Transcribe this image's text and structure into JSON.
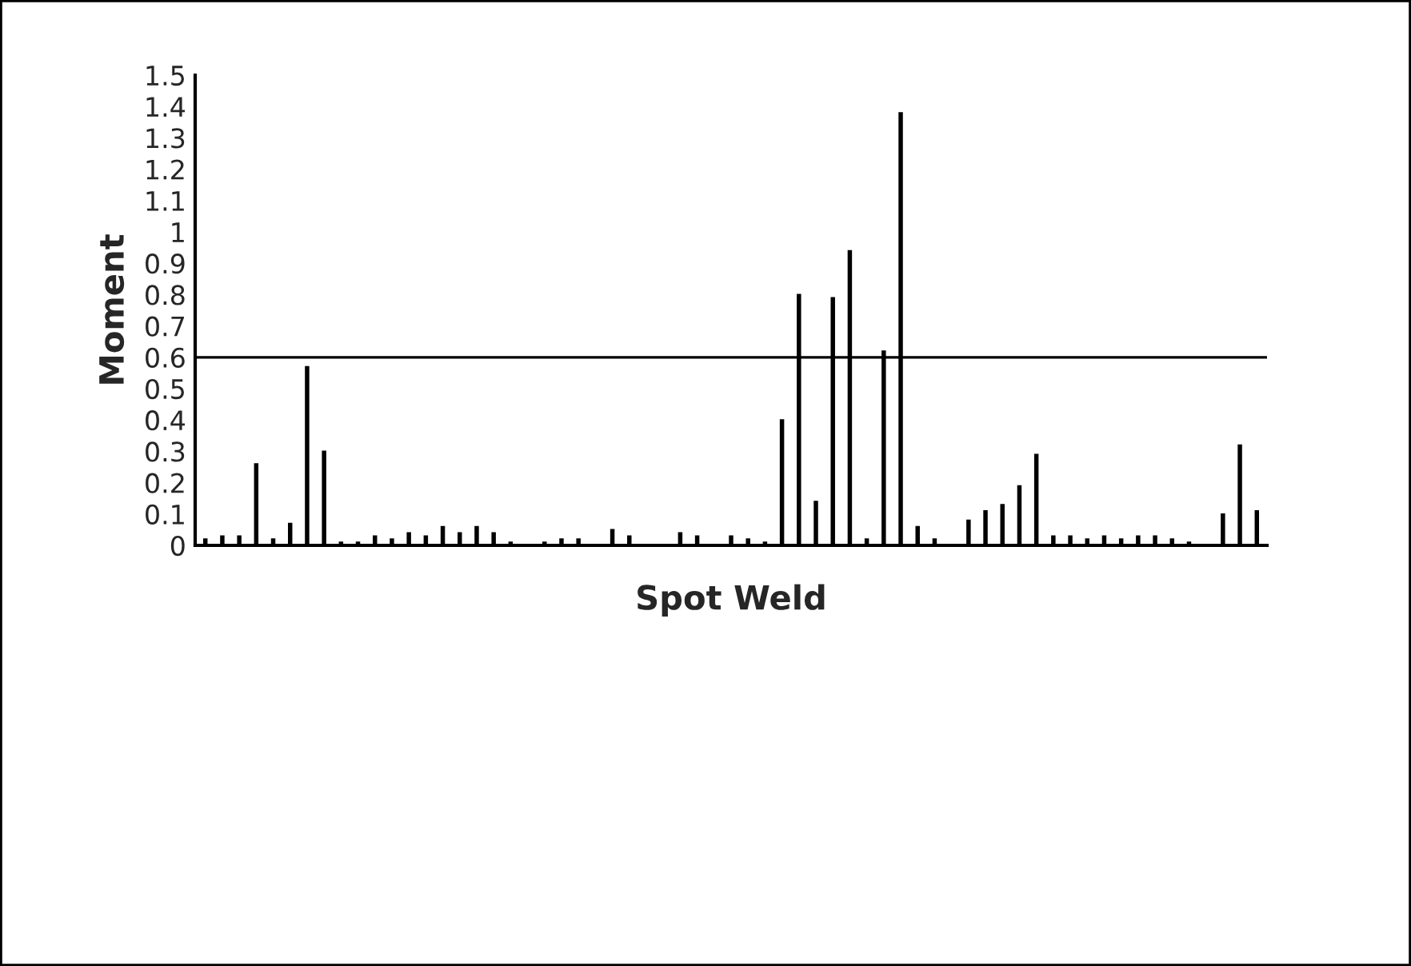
{
  "chart_data": {
    "type": "bar",
    "xlabel": "Spot Weld",
    "ylabel": "Moment",
    "categories": [
      null,
      null,
      null,
      null,
      null,
      null,
      null,
      null,
      null,
      null,
      null,
      null,
      null,
      null,
      null,
      null,
      null,
      null,
      null,
      null,
      null,
      null,
      null,
      null,
      null,
      null,
      null,
      null,
      null,
      null,
      null,
      null,
      null,
      null,
      null,
      null,
      null,
      null,
      null,
      null,
      null,
      null,
      null,
      null,
      null,
      null,
      null,
      null,
      null,
      null,
      null,
      null,
      null,
      null,
      null,
      null,
      null,
      null,
      null,
      null,
      null,
      null,
      null
    ],
    "values": [
      0.02,
      0.03,
      0.03,
      0.26,
      0.02,
      0.07,
      0.57,
      0.3,
      0.01,
      0.01,
      0.03,
      0.02,
      0.04,
      0.03,
      0.06,
      0.04,
      0.06,
      0.04,
      0.01,
      null,
      0.01,
      0.02,
      0.02,
      null,
      0.05,
      0.03,
      null,
      null,
      0.04,
      0.03,
      null,
      0.03,
      0.02,
      0.01,
      0.4,
      0.8,
      0.14,
      0.79,
      0.94,
      0.02,
      0.62,
      1.38,
      0.06,
      0.02,
      null,
      0.08,
      0.11,
      0.13,
      0.19,
      0.29,
      0.03,
      0.03,
      0.02,
      0.03,
      0.02,
      0.03,
      0.03,
      0.02,
      0.01,
      null,
      0.1,
      0.32,
      0.11
    ],
    "color": "#000000",
    "ylim": [
      0,
      1.5
    ],
    "yticks": [
      0,
      0.1,
      0.2,
      0.3,
      0.4,
      0.5,
      0.6,
      0.7,
      0.8,
      0.9,
      1,
      1.1,
      1.2,
      1.3,
      1.4,
      1.5
    ],
    "ref_lines": [
      {
        "axis": "y",
        "value": 0.6,
        "color": "#000000"
      }
    ],
    "grid": false,
    "legend": false
  }
}
